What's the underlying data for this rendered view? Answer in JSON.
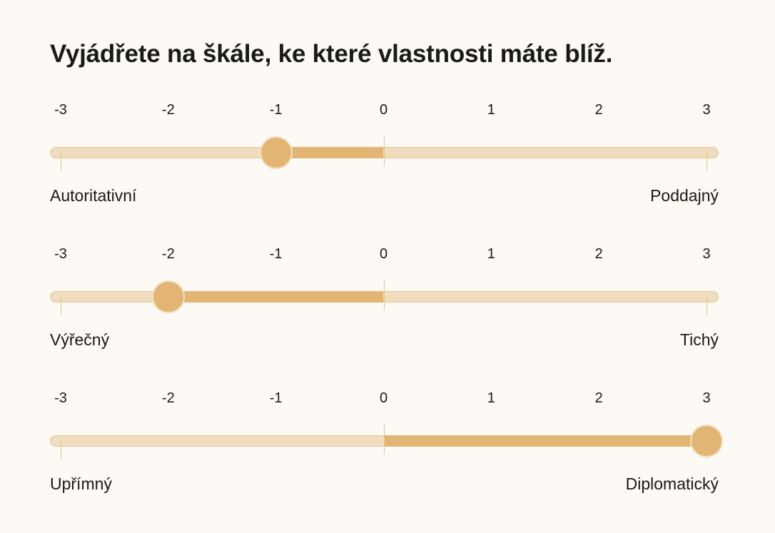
{
  "title": "Vyjádřete na škále, ke které vlastnosti máte blíž.",
  "colors": {
    "background": "#fdf9f4",
    "track": "#f1dcbd",
    "fill": "#e2b574",
    "thumb": "#e2b574"
  },
  "scales": [
    {
      "ticks": [
        "-3",
        "-2",
        "-1",
        "0",
        "1",
        "2",
        "3"
      ],
      "left_label": "Autoritativní",
      "right_label": "Poddajný",
      "value": -1
    },
    {
      "ticks": [
        "-3",
        "-2",
        "-1",
        "0",
        "1",
        "2",
        "3"
      ],
      "left_label": "Výřečný",
      "right_label": "Tichý",
      "value": -2
    },
    {
      "ticks": [
        "-3",
        "-2",
        "-1",
        "0",
        "1",
        "2",
        "3"
      ],
      "left_label": "Upřímný",
      "right_label": "Diplomatický",
      "value": 3
    }
  ]
}
